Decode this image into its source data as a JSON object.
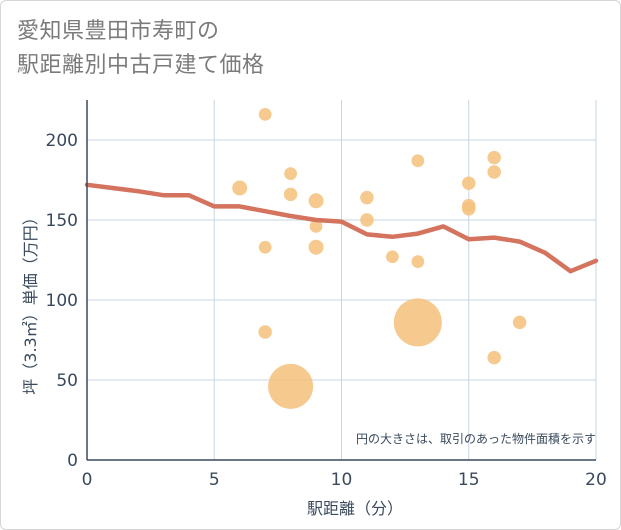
{
  "chart_data": {
    "type": "scatter",
    "title_lines": [
      "愛知県豊田市寿町の",
      "駅距離別中古戸建て価格"
    ],
    "xlabel": "駅距離（分）",
    "ylabel": "坪（3.3㎡）単価（万円）",
    "xlim": [
      0,
      20
    ],
    "ylim": [
      0,
      225
    ],
    "x_ticks": [
      0,
      5,
      10,
      15,
      20
    ],
    "y_ticks": [
      0,
      50,
      100,
      150,
      200
    ],
    "annotation": "円の大きさは、取引のあった物件面積を示す",
    "colors": {
      "bubble": "#f5c27e",
      "trend": "#d4735e",
      "grid": "#c9d5e3",
      "axis": "#3a4a5c"
    },
    "points": [
      {
        "x": 6,
        "y": 170,
        "size": 1.0
      },
      {
        "x": 7,
        "y": 216,
        "size": 0.85
      },
      {
        "x": 7,
        "y": 133,
        "size": 0.85
      },
      {
        "x": 7,
        "y": 80,
        "size": 0.9
      },
      {
        "x": 8,
        "y": 179,
        "size": 0.85
      },
      {
        "x": 8,
        "y": 166,
        "size": 0.9
      },
      {
        "x": 8,
        "y": 46,
        "size": 3.0
      },
      {
        "x": 9,
        "y": 162,
        "size": 1.0
      },
      {
        "x": 9,
        "y": 146,
        "size": 0.85
      },
      {
        "x": 9,
        "y": 133,
        "size": 1.0
      },
      {
        "x": 11,
        "y": 164,
        "size": 0.9
      },
      {
        "x": 11,
        "y": 150,
        "size": 0.9
      },
      {
        "x": 12,
        "y": 127,
        "size": 0.85
      },
      {
        "x": 13,
        "y": 187,
        "size": 0.85
      },
      {
        "x": 13,
        "y": 124,
        "size": 0.85
      },
      {
        "x": 13,
        "y": 86,
        "size": 3.2
      },
      {
        "x": 15,
        "y": 173,
        "size": 0.9
      },
      {
        "x": 15,
        "y": 159,
        "size": 0.9
      },
      {
        "x": 15,
        "y": 157,
        "size": 0.9
      },
      {
        "x": 16,
        "y": 189,
        "size": 0.9
      },
      {
        "x": 16,
        "y": 180,
        "size": 0.9
      },
      {
        "x": 16,
        "y": 64,
        "size": 0.9
      },
      {
        "x": 17,
        "y": 86,
        "size": 0.9
      }
    ],
    "trend": {
      "x": [
        0,
        1,
        2,
        3,
        4,
        5,
        6,
        7,
        8,
        9,
        10,
        11,
        12,
        13,
        14,
        15,
        16,
        17,
        18,
        19,
        20
      ],
      "y": [
        172,
        170,
        168,
        165.5,
        165.5,
        158.5,
        158.5,
        155.5,
        152.5,
        150,
        149,
        141,
        139.5,
        141.5,
        146,
        138,
        139,
        136.5,
        129.5,
        118,
        124.5
      ]
    }
  }
}
